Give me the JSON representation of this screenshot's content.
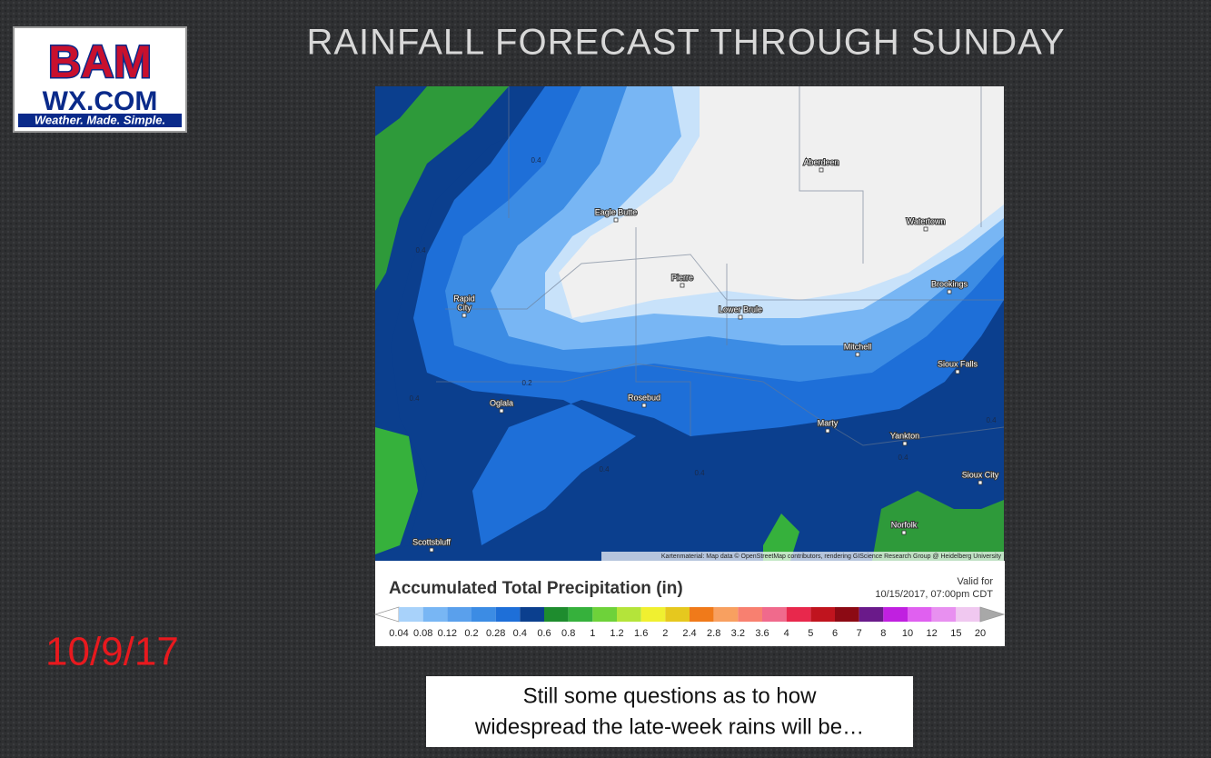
{
  "logo": {
    "top": "BAM",
    "middle": "WX.COM",
    "tagline": "Weather. Made. Simple."
  },
  "title": "RAINFALL FORECAST THROUGH SUNDAY",
  "map": {
    "cities": [
      {
        "lines": [
          "Aberdeen"
        ]
      },
      {
        "lines": [
          "Eagle Butte"
        ]
      },
      {
        "lines": [
          "Watertown"
        ]
      },
      {
        "lines": [
          "Pierre"
        ]
      },
      {
        "lines": [
          "Brookings"
        ]
      },
      {
        "lines": [
          "Rapid",
          "City"
        ]
      },
      {
        "lines": [
          "Lower Brule"
        ]
      },
      {
        "lines": [
          "Mitchell"
        ]
      },
      {
        "lines": [
          "Sioux Falls"
        ]
      },
      {
        "lines": [
          "Rosebud"
        ]
      },
      {
        "lines": [
          "Oglala"
        ]
      },
      {
        "lines": [
          "Marty"
        ]
      },
      {
        "lines": [
          "Yankton"
        ]
      },
      {
        "lines": [
          "Sioux City"
        ]
      },
      {
        "lines": [
          "Norfolk"
        ]
      },
      {
        "lines": [
          "Scottsbluff"
        ]
      }
    ],
    "contour_labels": [
      "0.4",
      "0.4",
      "0.2",
      "0.4",
      "0.4",
      "0.4",
      "0.4",
      "0.4"
    ],
    "attribution": "Kartenmaterial: Map data © OpenStreetMap contributors, rendering GIScience Research Group @ Heidelberg University"
  },
  "legend": {
    "title": "Accumulated Total Precipitation (in)",
    "valid_label": "Valid for",
    "valid_time": "10/15/2017, 07:00pm CDT",
    "ticks": [
      "0.04",
      "0.08",
      "0.12",
      "0.2",
      "0.28",
      "0.4",
      "0.6",
      "0.8",
      "1",
      "1.2",
      "1.6",
      "2",
      "2.4",
      "2.8",
      "3.2",
      "3.6",
      "4",
      "5",
      "6",
      "7",
      "8",
      "10",
      "12",
      "15",
      "20"
    ],
    "low_color": "#ffffff",
    "high_color": "#a8a8a8",
    "colors": [
      "#a8d2fa",
      "#78b6f4",
      "#5aa0ec",
      "#3c8ce4",
      "#1e6fd8",
      "#0b3f8e",
      "#1e8c2e",
      "#36b13c",
      "#6ed23a",
      "#b4e43a",
      "#f0f030",
      "#e6c81e",
      "#f07a1a",
      "#f8a060",
      "#f88070",
      "#f06a8c",
      "#e8284c",
      "#c0141e",
      "#8c0a14",
      "#6a1a8a",
      "#c020e0",
      "#e060f0",
      "#e890f0",
      "#f0c8f0",
      "#dcdcdc"
    ]
  },
  "date": "10/9/17",
  "caption": [
    "Still some questions as to how",
    "widespread the late-week rains will be…"
  ]
}
